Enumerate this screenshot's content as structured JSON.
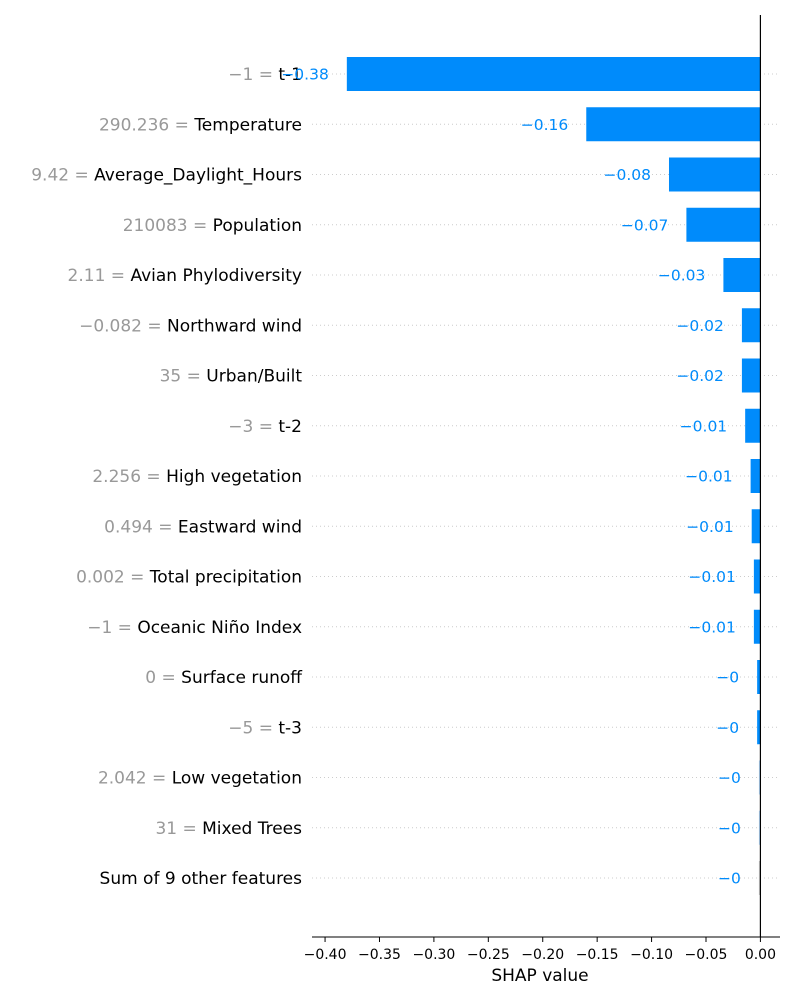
{
  "chart_data": {
    "type": "bar",
    "orientation": "horizontal",
    "chart_style": "shap-waterfall-bar",
    "xlabel": "SHAP value",
    "xlim": [
      -0.412,
      0.018
    ],
    "xticks": [
      -0.4,
      -0.35,
      -0.3,
      -0.25,
      -0.2,
      -0.15,
      -0.1,
      -0.05,
      0.0
    ],
    "xtick_labels": [
      "−0.40",
      "−0.35",
      "−0.30",
      "−0.25",
      "−0.20",
      "−0.15",
      "−0.10",
      "−0.05",
      "0.00"
    ],
    "grid": "dotted horizontal row guides",
    "zero_line": true,
    "colors": {
      "negative_bar": "#008bfb",
      "tiny_bar": "#b7dcff",
      "other_bar": "#cccccc",
      "feature_value_text": "#999999",
      "feature_name_text": "#000000",
      "data_label_text": "#008bfb"
    },
    "rows": [
      {
        "feature_value": "−1",
        "feature": "t-1",
        "value": -0.38,
        "label": "−0.38"
      },
      {
        "feature_value": "290.236",
        "feature": "Temperature",
        "value": -0.16,
        "label": "−0.16"
      },
      {
        "feature_value": "9.42",
        "feature": "Average_Daylight_Hours",
        "value": -0.084,
        "label": "−0.08"
      },
      {
        "feature_value": "210083",
        "feature": "Population",
        "value": -0.068,
        "label": "−0.07"
      },
      {
        "feature_value": "2.11",
        "feature": "Avian Phylodiversity",
        "value": -0.034,
        "label": "−0.03"
      },
      {
        "feature_value": "−0.082",
        "feature": "Northward wind",
        "value": -0.017,
        "label": "−0.02"
      },
      {
        "feature_value": "35",
        "feature": "Urban/Built",
        "value": -0.017,
        "label": "−0.02"
      },
      {
        "feature_value": "−3",
        "feature": "t-2",
        "value": -0.014,
        "label": "−0.01"
      },
      {
        "feature_value": "2.256",
        "feature": "High vegetation",
        "value": -0.009,
        "label": "−0.01"
      },
      {
        "feature_value": "0.494",
        "feature": "Eastward wind",
        "value": -0.008,
        "label": "−0.01"
      },
      {
        "feature_value": "0.002",
        "feature": "Total precipitation",
        "value": -0.006,
        "label": "−0.01"
      },
      {
        "feature_value": "−1",
        "feature": "Oceanic Niño Index",
        "value": -0.006,
        "label": "−0.01"
      },
      {
        "feature_value": "0",
        "feature": "Surface runoff",
        "value": -0.003,
        "label": "−0"
      },
      {
        "feature_value": "−5",
        "feature": "t-3",
        "value": -0.003,
        "label": "−0"
      },
      {
        "feature_value": "2.042",
        "feature": "Low vegetation",
        "value": -0.001,
        "label": "−0"
      },
      {
        "feature_value": "31",
        "feature": "Mixed Trees",
        "value": -0.0005,
        "label": "−0"
      },
      {
        "feature_value": "",
        "feature": "Sum of 9 other features",
        "value": -0.0005,
        "label": "−0",
        "is_other": true
      }
    ]
  }
}
